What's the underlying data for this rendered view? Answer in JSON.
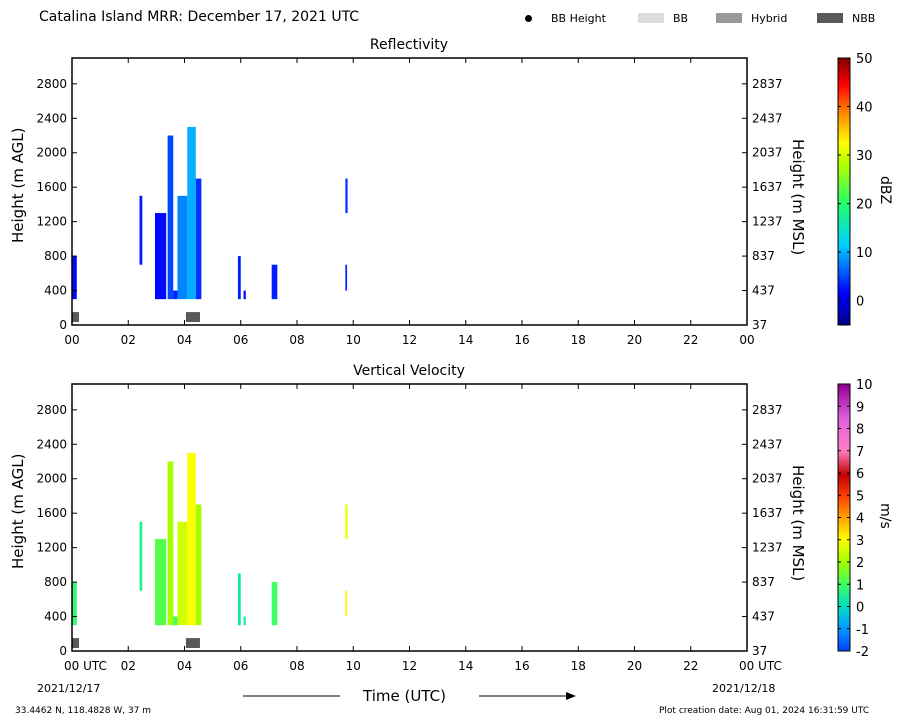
{
  "header": {
    "title": "Catalina Island MRR:  December 17, 2021 UTC",
    "legend": [
      {
        "label": "BB Height",
        "color": "#000000",
        "kind": "dot"
      },
      {
        "label": "BB",
        "color": "#dcdcdc",
        "kind": "swatch"
      },
      {
        "label": "Hybrid",
        "color": "#999999",
        "kind": "swatch"
      },
      {
        "label": "NBB",
        "color": "#595959",
        "kind": "swatch"
      }
    ]
  },
  "footer": {
    "location": "33.4462 N, 118.4828 W, 37 m",
    "creation": "Plot creation date: Aug 01, 2024 16:31:59 UTC",
    "xlabel": "Time (UTC)",
    "date_start": "2021/12/17",
    "date_end": "2021/12/18"
  },
  "chart_data": [
    {
      "type": "heatmap",
      "title": "Reflectivity",
      "xlabel": "",
      "ylabel": "Height (m AGL)",
      "ylabel_right": "Height (m MSL)",
      "x_ticks": [
        "00",
        "02",
        "04",
        "06",
        "08",
        "10",
        "12",
        "14",
        "16",
        "18",
        "20",
        "22",
        "00"
      ],
      "xlim": [
        0,
        24
      ],
      "ylim": [
        0,
        3100
      ],
      "y_ticks": [
        0,
        400,
        800,
        1200,
        1600,
        2000,
        2400,
        2800
      ],
      "y_ticks_right": [
        37,
        437,
        837,
        1237,
        1637,
        2037,
        2437,
        2837
      ],
      "colorbar": {
        "label": "dBZ",
        "min": -5,
        "max": 50,
        "ticks": [
          0,
          10,
          20,
          30,
          40,
          50
        ]
      },
      "bright_band": [
        {
          "start": 0.0,
          "end": 0.25,
          "type": "NBB"
        },
        {
          "start": 4.05,
          "end": 4.55,
          "type": "NBB"
        }
      ],
      "echoes": [
        {
          "start": 0.0,
          "end": 0.17,
          "bottom": 300,
          "top": 800,
          "value": 2
        },
        {
          "start": 2.4,
          "end": 2.5,
          "bottom": 700,
          "top": 1500,
          "value": 3
        },
        {
          "start": 2.95,
          "end": 3.35,
          "bottom": 300,
          "top": 1300,
          "value": 2
        },
        {
          "start": 3.4,
          "end": 3.6,
          "bottom": 300,
          "top": 2200,
          "value": 5
        },
        {
          "start": 3.6,
          "end": 3.75,
          "bottom": 300,
          "top": 400,
          "value": 3
        },
        {
          "start": 3.75,
          "end": 4.1,
          "bottom": 300,
          "top": 1500,
          "value": 8
        },
        {
          "start": 4.1,
          "end": 4.4,
          "bottom": 300,
          "top": 2300,
          "value": 10
        },
        {
          "start": 4.4,
          "end": 4.6,
          "bottom": 300,
          "top": 1700,
          "value": 4
        },
        {
          "start": 5.9,
          "end": 6.0,
          "bottom": 300,
          "top": 800,
          "value": 3
        },
        {
          "start": 6.1,
          "end": 6.18,
          "bottom": 300,
          "top": 400,
          "value": 2
        },
        {
          "start": 7.1,
          "end": 7.3,
          "bottom": 300,
          "top": 700,
          "value": 3
        },
        {
          "start": 9.72,
          "end": 9.8,
          "bottom": 1300,
          "top": 1700,
          "value": 4
        },
        {
          "start": 9.72,
          "end": 9.78,
          "bottom": 400,
          "top": 700,
          "value": 3
        }
      ]
    },
    {
      "type": "heatmap",
      "title": "Vertical Velocity",
      "xlabel": "Time (UTC)",
      "ylabel": "Height (m AGL)",
      "ylabel_right": "Height (m MSL)",
      "x_ticks": [
        "00 UTC",
        "02",
        "04",
        "06",
        "08",
        "10",
        "12",
        "14",
        "16",
        "18",
        "20",
        "22",
        "00 UTC"
      ],
      "xlim": [
        0,
        24
      ],
      "ylim": [
        0,
        3100
      ],
      "y_ticks": [
        0,
        400,
        800,
        1200,
        1600,
        2000,
        2400,
        2800
      ],
      "y_ticks_right": [
        37,
        437,
        837,
        1237,
        1637,
        2037,
        2437,
        2837
      ],
      "colorbar": {
        "label": "m/s",
        "min": -2,
        "max": 10,
        "ticks": [
          -2,
          -1,
          0,
          1,
          2,
          3,
          4,
          5,
          6,
          7,
          8,
          9,
          10
        ]
      },
      "bright_band": [
        {
          "start": 0.0,
          "end": 0.25,
          "type": "NBB"
        },
        {
          "start": 4.05,
          "end": 4.55,
          "type": "NBB"
        }
      ],
      "echoes": [
        {
          "start": 0.0,
          "end": 0.17,
          "bottom": 300,
          "top": 800,
          "value": 0.8
        },
        {
          "start": 2.4,
          "end": 2.5,
          "bottom": 700,
          "top": 1500,
          "value": 0.6
        },
        {
          "start": 2.95,
          "end": 3.35,
          "bottom": 300,
          "top": 1300,
          "value": 1.2
        },
        {
          "start": 3.4,
          "end": 3.6,
          "bottom": 300,
          "top": 2200,
          "value": 2.0
        },
        {
          "start": 3.6,
          "end": 3.75,
          "bottom": 300,
          "top": 400,
          "value": 1.0
        },
        {
          "start": 3.75,
          "end": 4.1,
          "bottom": 300,
          "top": 1500,
          "value": 2.5
        },
        {
          "start": 4.1,
          "end": 4.4,
          "bottom": 300,
          "top": 2300,
          "value": 3.0
        },
        {
          "start": 4.4,
          "end": 4.6,
          "bottom": 300,
          "top": 1700,
          "value": 2.0
        },
        {
          "start": 5.9,
          "end": 6.0,
          "bottom": 300,
          "top": 900,
          "value": 0.3
        },
        {
          "start": 6.1,
          "end": 6.18,
          "bottom": 300,
          "top": 400,
          "value": 0.5
        },
        {
          "start": 7.1,
          "end": 7.3,
          "bottom": 300,
          "top": 800,
          "value": 1.0
        },
        {
          "start": 9.72,
          "end": 9.8,
          "bottom": 1300,
          "top": 1700,
          "value": 2.8
        },
        {
          "start": 9.72,
          "end": 9.78,
          "bottom": 400,
          "top": 700,
          "value": 3.2
        }
      ]
    }
  ]
}
